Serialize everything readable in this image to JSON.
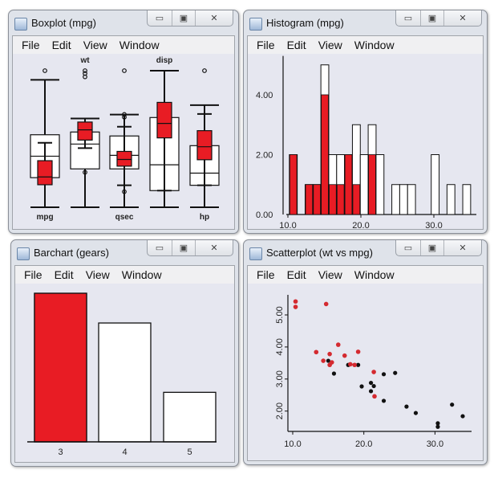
{
  "menu": [
    "File",
    "Edit",
    "View",
    "Window"
  ],
  "window_controls": {
    "minimize": "▭",
    "maximize": "▣",
    "close": "✕"
  },
  "colors": {
    "selected": "#e81c24",
    "unselected": "#ffffff",
    "plot_bg": "#e6e7f0",
    "outline": "#111111"
  },
  "windows": {
    "boxplot": {
      "title": "Boxplot (mpg)"
    },
    "histogram": {
      "title": "Histogram (mpg)"
    },
    "barchart": {
      "title": "Barchart (gears)"
    },
    "scatter": {
      "title": "Scatterplot (wt vs mpg)"
    }
  },
  "chart_data": [
    {
      "type": "boxplot",
      "note_scale": "each variable scaled to its own range (0 = min, 1 = max)",
      "variables": [
        {
          "name": "mpg",
          "label_pos": "bottom",
          "all": {
            "lo": 0,
            "q1": 0.217,
            "med": 0.374,
            "q3": 0.531,
            "hi": 0.933,
            "outliers": [
              1.0
            ]
          },
          "selected": {
            "lo": 0,
            "q1": 0.165,
            "med": 0.222,
            "q3": 0.341,
            "hi": 0.472,
            "outliers": []
          }
        },
        {
          "name": "wt",
          "label_pos": "top",
          "all": {
            "lo": 0,
            "q1": 0.281,
            "med": 0.463,
            "q3": 0.551,
            "hi": 0.65,
            "outliers": [
              1.0,
              0.98,
              0.955
            ]
          },
          "selected": {
            "lo": 0.433,
            "q1": 0.492,
            "med": 0.567,
            "q3": 0.624,
            "hi": 0.65,
            "outliers": [
              0.256
            ]
          }
        },
        {
          "name": "qsec",
          "label_pos": "bottom",
          "all": {
            "lo": 0,
            "q1": 0.281,
            "med": 0.38,
            "q3": 0.522,
            "hi": 0.679,
            "outliers": [
              1.0
            ]
          },
          "selected": {
            "lo": 0.161,
            "q1": 0.301,
            "med": 0.35,
            "q3": 0.409,
            "hi": 0.59,
            "outliers": [
              0.68,
              0.66,
              0.114
            ]
          }
        },
        {
          "name": "disp",
          "label_pos": "top",
          "all": {
            "lo": 0,
            "q1": 0.122,
            "med": 0.311,
            "q3": 0.657,
            "hi": 1.0,
            "outliers": []
          },
          "selected": {
            "lo": 0.122,
            "q1": 0.508,
            "med": 0.614,
            "q3": 0.768,
            "hi": 1.0,
            "outliers": []
          }
        },
        {
          "name": "hp",
          "label_pos": "bottom",
          "all": {
            "lo": 0,
            "q1": 0.161,
            "med": 0.25,
            "q3": 0.451,
            "hi": 0.748,
            "outliers": [
              1.0
            ]
          },
          "selected": {
            "lo": 0.161,
            "q1": 0.348,
            "med": 0.443,
            "q3": 0.561,
            "hi": 0.683,
            "outliers": []
          }
        }
      ]
    },
    {
      "type": "histogram",
      "variable": "mpg",
      "bin_start": 10.2,
      "bin_width": 1.08,
      "counts": [
        2,
        0,
        1,
        1,
        5,
        2,
        2,
        2,
        3,
        2,
        3,
        2,
        0,
        1,
        1,
        1,
        0,
        0,
        2,
        0,
        1,
        0,
        1
      ],
      "selected": [
        2,
        0,
        1,
        1,
        4,
        1,
        1,
        2,
        1,
        0,
        2,
        0,
        0,
        0,
        0,
        0,
        0,
        0,
        0,
        0,
        0,
        0,
        0
      ],
      "xlim": [
        9.4,
        35.5
      ],
      "ylim": [
        0,
        5
      ],
      "xticks": [
        "10.0",
        "20.0",
        "30.0"
      ],
      "yticks": [
        "0.00",
        "2.00",
        "4.00"
      ]
    },
    {
      "type": "bar",
      "variable": "gears",
      "categories": [
        "3",
        "4",
        "5"
      ],
      "values": [
        15,
        12,
        5
      ],
      "selected": [
        15,
        0,
        0
      ]
    },
    {
      "type": "scatter",
      "x_variable": "mpg",
      "y_variable": "wt",
      "xlim": [
        9.4,
        35.5
      ],
      "ylim": [
        1.3,
        5.7
      ],
      "xticks": [
        "10.0",
        "20.0",
        "30.0"
      ],
      "yticks": [
        "2.00",
        "3.00",
        "4.00",
        "5.00"
      ],
      "selected_points": [
        [
          10.4,
          5.42
        ],
        [
          10.4,
          5.25
        ],
        [
          14.7,
          5.34
        ],
        [
          13.3,
          3.84
        ],
        [
          14.3,
          3.57
        ],
        [
          15.2,
          3.78
        ],
        [
          15.5,
          3.52
        ],
        [
          15.2,
          3.44
        ],
        [
          16.4,
          4.07
        ],
        [
          17.3,
          3.73
        ],
        [
          18.1,
          3.46
        ],
        [
          18.7,
          3.44
        ],
        [
          19.2,
          3.85
        ],
        [
          21.4,
          3.22
        ],
        [
          21.5,
          2.46
        ]
      ],
      "other_points": [
        [
          15.0,
          3.57
        ],
        [
          15.8,
          3.17
        ],
        [
          17.8,
          3.44
        ],
        [
          19.2,
          3.44
        ],
        [
          19.7,
          2.77
        ],
        [
          21.0,
          2.88
        ],
        [
          21.4,
          2.78
        ],
        [
          21.0,
          2.62
        ],
        [
          22.8,
          3.15
        ],
        [
          24.4,
          3.19
        ],
        [
          22.8,
          2.32
        ],
        [
          26.0,
          2.14
        ],
        [
          27.3,
          1.94
        ],
        [
          30.4,
          1.62
        ],
        [
          30.4,
          1.51
        ],
        [
          32.4,
          2.2
        ],
        [
          33.9,
          1.84
        ]
      ]
    }
  ]
}
